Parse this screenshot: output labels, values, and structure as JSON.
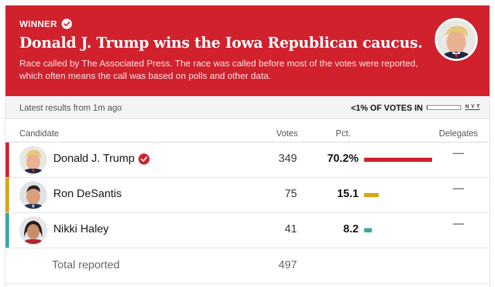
{
  "banner": {
    "winner_label": "WINNER",
    "headline": "Donald J. Trump wins the Iowa Republican caucus.",
    "subtext": "Race called by The Associated Press. The race was called before most of the votes were reported, which often means the call was based on polls and other data.",
    "background_color": "#d0212d"
  },
  "status": {
    "latest": "Latest results from 1m ago",
    "votes_in": "<1% OF VOTES IN",
    "votes_in_fraction": 0.01,
    "source_logo": "N Y T"
  },
  "columns": {
    "candidate": "Candidate",
    "votes": "Votes",
    "pct": "Pct.",
    "delegates": "Delegates"
  },
  "candidates": [
    {
      "name": "Donald J. Trump",
      "votes": "349",
      "pct": "70.2%",
      "pct_value": 70.2,
      "delegates": "—",
      "color": "#d0212d",
      "winner": true
    },
    {
      "name": "Ron DeSantis",
      "votes": "75",
      "pct": "15.1",
      "pct_value": 15.1,
      "delegates": "—",
      "color": "#d9a513",
      "winner": false
    },
    {
      "name": "Nikki Haley",
      "votes": "41",
      "pct": "8.2",
      "pct_value": 8.2,
      "delegates": "—",
      "color": "#3aa7a3",
      "winner": false
    }
  ],
  "total": {
    "label": "Total reported",
    "votes": "497"
  },
  "icons": {
    "winner_check": "check-circle-icon"
  }
}
